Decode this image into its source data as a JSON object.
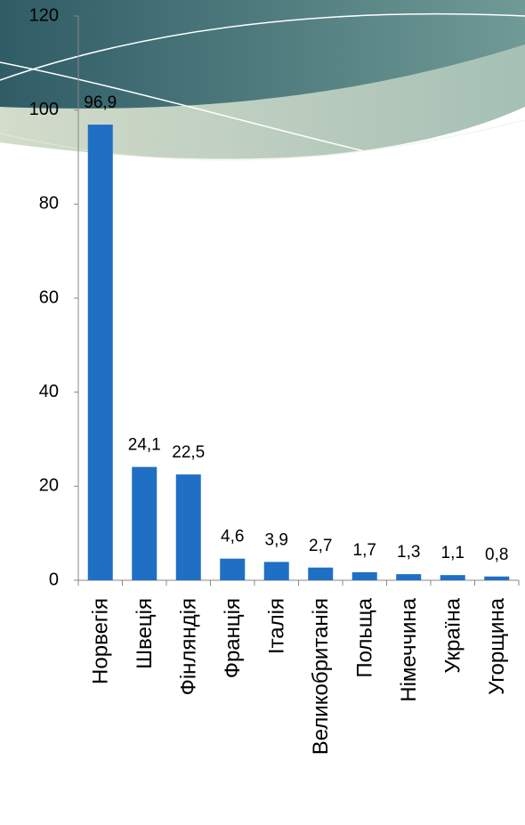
{
  "chart_data": {
    "type": "bar",
    "categories": [
      "Норвегія",
      "Швеція",
      "Фінляндія",
      "Франція",
      "Італія",
      "Великобританія",
      "Польща",
      "Німеччина",
      "Україна",
      "Угорщина"
    ],
    "values": [
      96.9,
      24.1,
      22.5,
      4.6,
      3.9,
      2.7,
      1.7,
      1.3,
      1.1,
      0.8
    ],
    "value_labels": [
      "96,9",
      "24,1",
      "22,5",
      "4,6",
      "3,9",
      "2,7",
      "1,7",
      "1,3",
      "1,1",
      "0,8"
    ],
    "color": "#1f6fc4",
    "ylim": [
      0,
      120
    ],
    "yticks": [
      0,
      20,
      40,
      60,
      80,
      100,
      120
    ],
    "grid": false
  }
}
